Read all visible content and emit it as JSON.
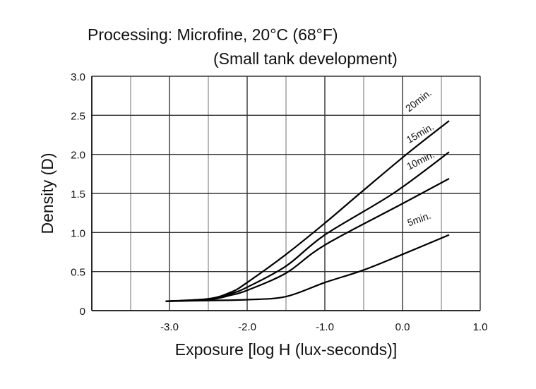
{
  "chart_data": {
    "type": "line",
    "title": "Processing: Microfine, 20°C (68°F)",
    "subtitle": "(Small tank development)",
    "xlabel": "Exposure [log H (lux-seconds)]",
    "ylabel": "Density (D)",
    "xlim": [
      -4.0,
      1.0
    ],
    "ylim": [
      0,
      3.0
    ],
    "grid": true,
    "xticks": [
      -3.0,
      -2.0,
      -1.0,
      0.0,
      1.0
    ],
    "xtick_labels": [
      "-3.0",
      "-2.0",
      "-1.0",
      "0.0",
      "1.0"
    ],
    "yticks": [
      0,
      0.5,
      1.0,
      1.5,
      2.0,
      2.5,
      3.0
    ],
    "ytick_labels": [
      "0",
      "0.5",
      "1.0",
      "1.5",
      "2.0",
      "2.5",
      "3.0"
    ],
    "series": [
      {
        "name": "20min.",
        "x": [
          -3.05,
          -2.5,
          -2.2,
          -2.0,
          -1.5,
          -1.0,
          -0.55,
          0.05,
          0.6
        ],
        "y": [
          0.12,
          0.15,
          0.24,
          0.36,
          0.72,
          1.12,
          1.5,
          2.0,
          2.43
        ]
      },
      {
        "name": "15min.",
        "x": [
          -3.05,
          -2.5,
          -2.2,
          -2.0,
          -1.5,
          -1.0,
          -0.12,
          0.6
        ],
        "y": [
          0.12,
          0.15,
          0.22,
          0.3,
          0.57,
          0.97,
          1.5,
          2.03
        ]
      },
      {
        "name": "10min.",
        "x": [
          -3.05,
          -2.5,
          -2.2,
          -2.0,
          -1.5,
          -1.0,
          0.0,
          0.6
        ],
        "y": [
          0.12,
          0.14,
          0.2,
          0.26,
          0.48,
          0.84,
          1.37,
          1.69
        ]
      },
      {
        "name": "5min.",
        "x": [
          -3.05,
          -2.5,
          -2.0,
          -1.5,
          -1.0,
          -0.5,
          0.0,
          0.6
        ],
        "y": [
          0.12,
          0.13,
          0.14,
          0.18,
          0.36,
          0.52,
          0.72,
          0.97
        ]
      }
    ]
  }
}
